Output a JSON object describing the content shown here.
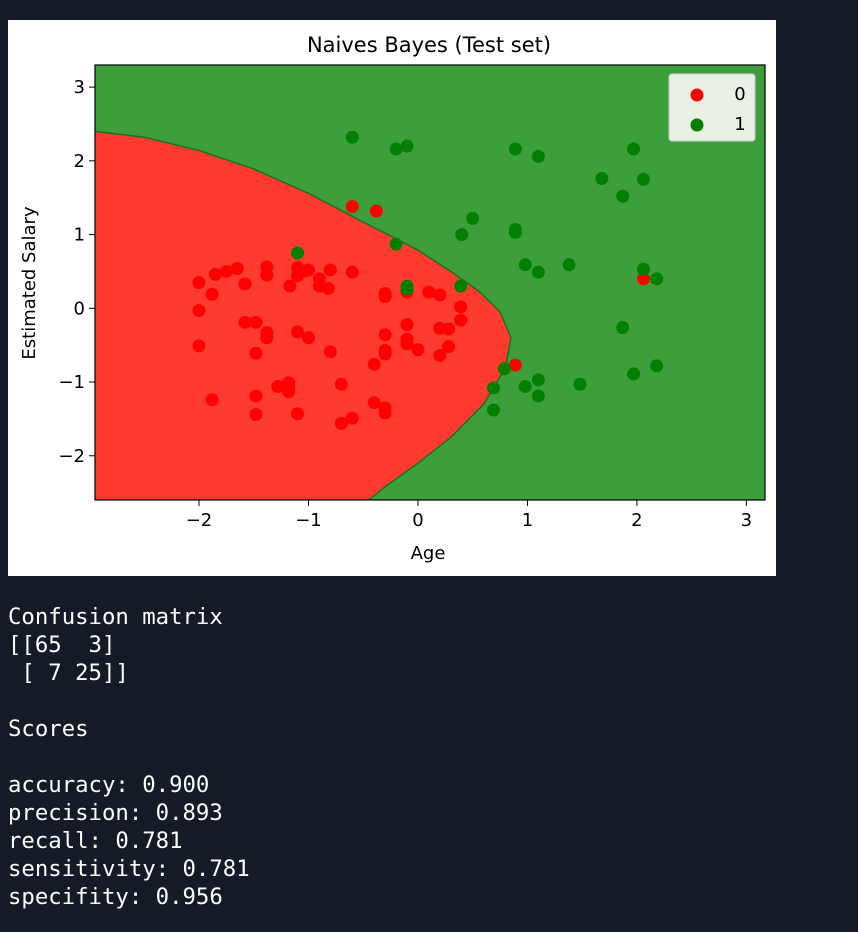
{
  "chart_data": {
    "type": "scatter",
    "title": "Naives Bayes (Test set)",
    "xlabel": "Age",
    "ylabel": "Estimated Salary",
    "xlim": [
      -2.95,
      3.17
    ],
    "ylim": [
      -2.6,
      3.3
    ],
    "xticks": [
      -2,
      -1,
      0,
      1,
      2,
      3
    ],
    "xtick_labels": [
      "−2",
      "−1",
      "0",
      "1",
      "2",
      "3"
    ],
    "yticks": [
      -2,
      -1,
      0,
      1,
      2,
      3
    ],
    "ytick_labels": [
      "−2",
      "−1",
      "0",
      "1",
      "2",
      "3"
    ],
    "grid": false,
    "legend_position": "top-right",
    "background_regions": [
      {
        "class": "0",
        "color": "#ff3b30",
        "region": "inside boundary (left)"
      },
      {
        "class": "1",
        "color": "#3c9f3c",
        "region": "outside boundary (right)"
      }
    ],
    "decision_boundary": [
      [
        -2.95,
        2.4
      ],
      [
        -2.5,
        2.32
      ],
      [
        -2.0,
        2.14
      ],
      [
        -1.5,
        1.89
      ],
      [
        -1.0,
        1.56
      ],
      [
        -0.5,
        1.17
      ],
      [
        0.0,
        0.79
      ],
      [
        0.3,
        0.5
      ],
      [
        0.55,
        0.24
      ],
      [
        0.75,
        -0.05
      ],
      [
        0.85,
        -0.4
      ],
      [
        0.8,
        -0.8
      ],
      [
        0.6,
        -1.3
      ],
      [
        0.3,
        -1.75
      ],
      [
        0.0,
        -2.1
      ],
      [
        -0.3,
        -2.42
      ],
      [
        -0.45,
        -2.6
      ]
    ],
    "series": [
      {
        "name": "0",
        "color": "#ff0000",
        "points": [
          [
            -0.6,
            1.38
          ],
          [
            -0.38,
            1.32
          ],
          [
            -1.65,
            0.54
          ],
          [
            -1.75,
            0.5
          ],
          [
            -1.85,
            0.46
          ],
          [
            -2.0,
            0.35
          ],
          [
            -1.88,
            0.19
          ],
          [
            -1.58,
            0.33
          ],
          [
            -1.38,
            0.56
          ],
          [
            -1.38,
            0.45
          ],
          [
            -1.1,
            0.55
          ],
          [
            -1.1,
            0.44
          ],
          [
            -1.05,
            0.5
          ],
          [
            -1.0,
            0.52
          ],
          [
            -1.17,
            0.3
          ],
          [
            -0.9,
            0.3
          ],
          [
            -0.82,
            0.27
          ],
          [
            -0.8,
            0.52
          ],
          [
            -0.9,
            0.4
          ],
          [
            -0.6,
            0.49
          ],
          [
            -0.3,
            0.2
          ],
          [
            -0.3,
            0.16
          ],
          [
            -0.1,
            0.22
          ],
          [
            0.1,
            0.22
          ],
          [
            0.2,
            0.18
          ],
          [
            0.39,
            0.02
          ],
          [
            0.39,
            -0.16
          ],
          [
            -2.0,
            -0.03
          ],
          [
            -2.0,
            -0.51
          ],
          [
            -1.58,
            -0.19
          ],
          [
            -1.48,
            -0.19
          ],
          [
            -1.48,
            -0.61
          ],
          [
            -1.38,
            -0.33
          ],
          [
            -1.38,
            -0.4
          ],
          [
            -1.1,
            -0.32
          ],
          [
            -1.0,
            -0.4
          ],
          [
            -0.8,
            -0.59
          ],
          [
            -0.3,
            -0.36
          ],
          [
            -0.3,
            -0.57
          ],
          [
            -0.3,
            -0.62
          ],
          [
            -0.1,
            -0.22
          ],
          [
            -0.1,
            -0.42
          ],
          [
            -0.1,
            -0.48
          ],
          [
            0.0,
            -0.56
          ],
          [
            0.2,
            -0.27
          ],
          [
            0.28,
            -0.28
          ],
          [
            0.28,
            -0.52
          ],
          [
            0.2,
            -0.64
          ],
          [
            -0.4,
            -0.76
          ],
          [
            -1.88,
            -1.24
          ],
          [
            -1.48,
            -1.19
          ],
          [
            -1.48,
            -1.44
          ],
          [
            -1.28,
            -1.06
          ],
          [
            -1.18,
            -1.01
          ],
          [
            -1.18,
            -1.08
          ],
          [
            -1.18,
            -1.13
          ],
          [
            -1.1,
            -1.43
          ],
          [
            -0.7,
            -1.03
          ],
          [
            -0.7,
            -1.56
          ],
          [
            -0.6,
            -1.49
          ],
          [
            -0.4,
            -1.28
          ],
          [
            -0.3,
            -1.35
          ],
          [
            -0.3,
            -1.42
          ],
          [
            0.89,
            -0.77
          ],
          [
            2.06,
            0.4
          ]
        ]
      },
      {
        "name": "1",
        "color": "#007f00",
        "points": [
          [
            -0.6,
            2.32
          ],
          [
            -0.2,
            2.16
          ],
          [
            -0.1,
            2.2
          ],
          [
            -1.1,
            0.75
          ],
          [
            -0.2,
            0.87
          ],
          [
            -0.1,
            0.26
          ],
          [
            -0.1,
            0.3
          ],
          [
            0.39,
            0.3
          ],
          [
            0.89,
            2.16
          ],
          [
            1.1,
            2.06
          ],
          [
            0.5,
            1.22
          ],
          [
            0.4,
            1.0
          ],
          [
            0.89,
            1.07
          ],
          [
            0.89,
            1.03
          ],
          [
            0.98,
            0.59
          ],
          [
            1.1,
            0.49
          ],
          [
            1.38,
            0.59
          ],
          [
            1.68,
            1.76
          ],
          [
            1.87,
            1.52
          ],
          [
            1.97,
            2.16
          ],
          [
            2.06,
            1.75
          ],
          [
            2.06,
            0.53
          ],
          [
            2.18,
            0.4
          ],
          [
            1.87,
            -0.26
          ],
          [
            1.97,
            -0.89
          ],
          [
            2.18,
            -0.78
          ],
          [
            0.79,
            -0.82
          ],
          [
            0.69,
            -1.08
          ],
          [
            0.69,
            -1.38
          ],
          [
            0.98,
            -1.06
          ],
          [
            1.1,
            -0.97
          ],
          [
            1.1,
            -1.19
          ],
          [
            1.48,
            -1.03
          ]
        ]
      }
    ]
  },
  "console": {
    "lines": [
      "Confusion matrix",
      "[[65  3]",
      " [ 7 25]]",
      "",
      "Scores",
      "",
      "accuracy: 0.900",
      "precision: 0.893",
      "recall: 0.781",
      "sensitivity: 0.781",
      "specifity: 0.956"
    ]
  }
}
